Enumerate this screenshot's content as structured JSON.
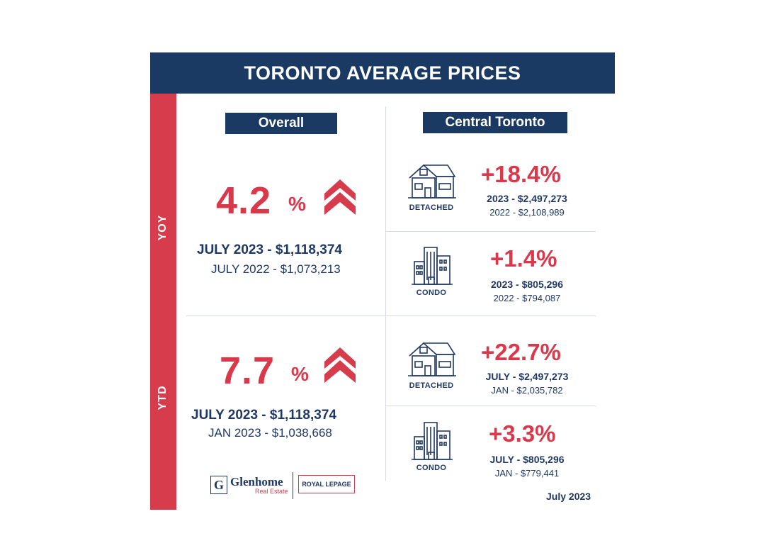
{
  "header": {
    "title": "TORONTO AVERAGE PRICES"
  },
  "sidebar": {
    "yoy_label": "YOY",
    "ytd_label": "YTD"
  },
  "overall": {
    "title": "Overall",
    "yoy": {
      "pct": "4.2",
      "pct_sign": "%",
      "current": "JULY 2023  -  $1,118,374",
      "previous": "JULY 2022  -  $1,073,213"
    },
    "ytd": {
      "pct": "7.7",
      "pct_sign": "%",
      "current": "JULY 2023  -  $1,118,374",
      "previous": "JAN 2023  -  $1,038,668"
    }
  },
  "central": {
    "title": "Central Toronto",
    "tiles": [
      {
        "icon": "house-icon",
        "label": "DETACHED",
        "pct": "+18.4%",
        "current": "2023 - $2,497,273",
        "previous": "2022 - $2,108,989"
      },
      {
        "icon": "condo-building-icon",
        "label": "CONDO",
        "pct": "+1.4%",
        "current": "2023 - $805,296",
        "previous": "2022 - $794,087"
      },
      {
        "icon": "house-icon",
        "label": "DETACHED",
        "pct": "+22.7%",
        "current": "JULY - $2,497,273",
        "previous": "JAN - $2,035,782"
      },
      {
        "icon": "condo-building-icon",
        "label": "CONDO",
        "pct": "+3.3%",
        "current": "JULY - $805,296",
        "previous": "JAN - $779,441"
      }
    ]
  },
  "footer": {
    "date": "July 2023",
    "logo_glenhome": "Glenhome",
    "logo_glenhome_sub": "Real Estate",
    "logo_glenhome_mark": "G",
    "logo_royal": "ROYAL LEPAGE"
  },
  "colors": {
    "navy": "#1b3a63",
    "red": "#d63c4b"
  }
}
